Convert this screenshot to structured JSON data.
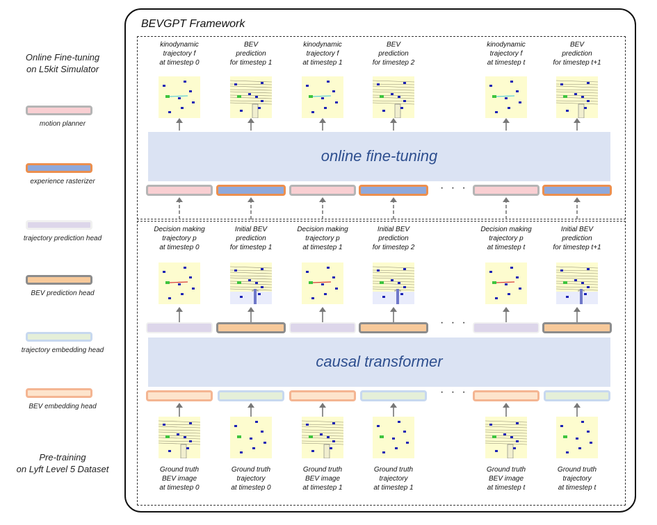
{
  "framework": {
    "title": "BEVGPT Framework"
  },
  "side": {
    "top_label": "Online Fine-tuning\non L5kit Simulator",
    "bottom_label": "Pre-training\non Lyft Level 5 Dataset"
  },
  "legend": [
    {
      "label": "motion planner",
      "fill": "#f9cfd2",
      "border": "#b5b5b5"
    },
    {
      "label": "experience rasterizer",
      "fill": "#8fa9dc",
      "border": "#ec8f4e"
    },
    {
      "label": "trajectory prediction head",
      "fill": "#ddd6ea",
      "border": "#f0f0f0"
    },
    {
      "label": "BEV prediction head",
      "fill": "#f7c99a",
      "border": "#8c8c8c"
    },
    {
      "label": "trajectory embedding head",
      "fill": "#e5efd9",
      "border": "#c7d8ef"
    },
    {
      "label": "BEV embedding head",
      "fill": "#fde4cc",
      "border": "#f4b592"
    }
  ],
  "top_captions": [
    "kinodynamic\ntrajectory f\nat timestep 0",
    "BEV\nprediction\nfor timestep 1",
    "kinodynamic\ntrajectory f\nat timestep 1",
    "BEV\nprediction\nfor timestep 2",
    "kinodynamic\ntrajectory f\nat timestep t",
    "BEV\nprediction\nfor timestep t+1"
  ],
  "mid_captions": [
    "Decision making\ntrajectory p\nat timestep 0",
    "Initial BEV\nprediction\nfor timestep 1",
    "Decision making\ntrajectory p\nat timestep 1",
    "Initial BEV\nprediction\nfor timestep 2",
    "Decision making\ntrajectory p\nat timestep t",
    "Initial BEV\nprediction\nfor timestep t+1"
  ],
  "bottom_captions": [
    "Ground truth\nBEV image\nat timestep 0",
    "Ground truth\ntrajectory\nat timestep 0",
    "Ground truth\nBEV image\nat timestep 1",
    "Ground truth\ntrajectory\nat timestep 1",
    "Ground truth\nBEV image\nat timestep t",
    "Ground truth\ntrajectory\nat timestep t"
  ],
  "bands": {
    "online": "online fine-tuning",
    "causal": "causal transformer"
  },
  "ellipsis": "· · ·",
  "colors": {
    "band": "#dbe3f3",
    "band_text": "#2e4f8f",
    "bev_bg": "#fdfccf",
    "vehicle": "#1b22b5",
    "ego": "#3ec43e",
    "traj_line_top": "#5fd0d6",
    "traj_line_mid": "#d83a3a"
  }
}
